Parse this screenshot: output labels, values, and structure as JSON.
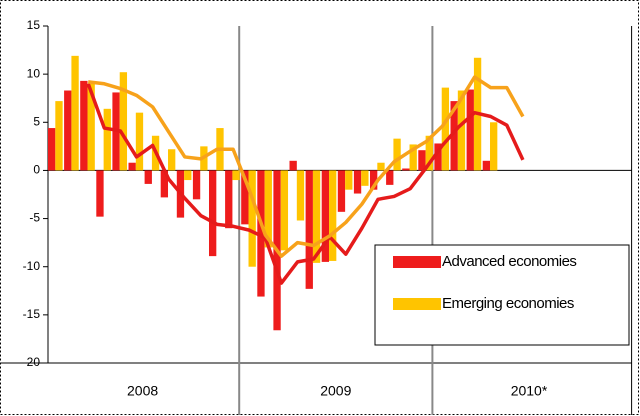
{
  "chart_data": {
    "type": "bar",
    "groups": [
      "2008",
      "2009",
      "2010*"
    ],
    "group_size": 12,
    "categories": [
      null,
      null,
      null,
      null,
      null,
      null,
      null,
      null,
      null,
      null,
      null,
      null,
      null,
      null,
      null,
      null,
      null,
      null,
      null,
      null,
      null,
      null,
      null,
      null,
      null,
      null,
      null,
      null,
      null,
      null
    ],
    "ylim": [
      -20,
      15
    ],
    "yticks": [
      -20,
      -15,
      -10,
      -5,
      0,
      5,
      10,
      15
    ],
    "series": [
      {
        "name": "Advanced economies",
        "type": "bar",
        "color": "#ee1c1c",
        "values": [
          4.4,
          8.3,
          9.3,
          -4.8,
          8.1,
          0.8,
          -1.4,
          -2.8,
          -4.9,
          -3.0,
          -8.9,
          -6.0,
          -5.6,
          -13.1,
          -16.6,
          1.0,
          -12.3,
          -9.5,
          -4.3,
          -2.4,
          -2.0,
          -1.5,
          0.2,
          2.1,
          2.8,
          7.2,
          8.4,
          1.0,
          null,
          null
        ]
      },
      {
        "name": "Emerging economies",
        "type": "bar",
        "color": "#ffc400",
        "values": [
          7.2,
          11.9,
          9.0,
          6.4,
          10.2,
          6.0,
          3.6,
          2.2,
          -1.0,
          2.5,
          4.4,
          -1.0,
          -10.0,
          -8.0,
          -8.3,
          -5.2,
          -9.6,
          -9.4,
          -2.0,
          -1.6,
          0.8,
          3.3,
          2.7,
          3.6,
          8.6,
          8.3,
          11.7,
          5.0,
          null,
          null
        ]
      },
      {
        "type": "line",
        "color": "#e51b1b",
        "values": [
          null,
          null,
          9.0,
          4.4,
          4.1,
          1.4,
          2.6,
          -0.9,
          -2.9,
          -4.7,
          -5.6,
          -5.8,
          -6.2,
          -7.0,
          -11.7,
          -9.5,
          -9.2,
          -6.9,
          -8.7,
          -6.0,
          -3.0,
          -2.7,
          -1.9,
          0.3,
          2.6,
          4.5,
          6.0,
          5.6,
          4.7,
          1.1
        ]
      },
      {
        "type": "line",
        "color": "#f7a21b",
        "values": [
          null,
          null,
          9.2,
          9.0,
          8.5,
          7.8,
          6.6,
          4.0,
          1.4,
          1.2,
          2.2,
          2.2,
          -2.0,
          -6.7,
          -8.9,
          -7.5,
          -7.8,
          -6.8,
          -5.4,
          -3.5,
          -1.0,
          0.9,
          2.0,
          3.0,
          4.6,
          7.0,
          9.7,
          8.6,
          8.6,
          5.6
        ]
      }
    ]
  }
}
